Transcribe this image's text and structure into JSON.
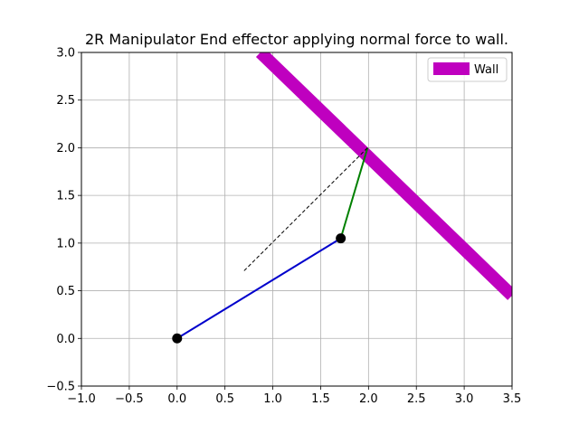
{
  "chart_data": {
    "type": "line",
    "title": "2R Manipulator End effector applying normal force to wall.",
    "xlabel": "",
    "ylabel": "",
    "xlim": [
      -1.0,
      3.5
    ],
    "ylim": [
      -0.5,
      3.0
    ],
    "grid": true,
    "x_ticks": [
      "−1.0",
      "−0.5",
      "0.0",
      "0.5",
      "1.0",
      "1.5",
      "2.0",
      "2.5",
      "3.0",
      "3.5"
    ],
    "y_ticks": [
      "−0.5",
      "0.0",
      "0.5",
      "1.0",
      "1.5",
      "2.0",
      "2.5",
      "3.0"
    ],
    "legend": {
      "placement": "top-right",
      "entries": [
        {
          "label": "Wall",
          "color": "#bf00bf"
        }
      ]
    },
    "series": [
      {
        "name": "Wall",
        "color": "#bf00bf",
        "style": "thick",
        "x": [
          0.87,
          3.5
        ],
        "y": [
          3.0,
          0.45
        ]
      },
      {
        "color": "#0000cc",
        "style": "solid",
        "x": [
          0.0,
          1.71
        ],
        "y": [
          0.0,
          1.05
        ]
      },
      {
        "color": "#008000",
        "style": "solid",
        "x": [
          1.71,
          1.99
        ],
        "y": [
          1.05,
          2.0
        ]
      },
      {
        "color": "#000000",
        "style": "dashed",
        "x": [
          0.7,
          1.99
        ],
        "y": [
          0.71,
          2.0
        ]
      }
    ],
    "joints": {
      "color": "#000000",
      "x": [
        0.0,
        1.71
      ],
      "y": [
        0.0,
        1.05
      ]
    }
  }
}
